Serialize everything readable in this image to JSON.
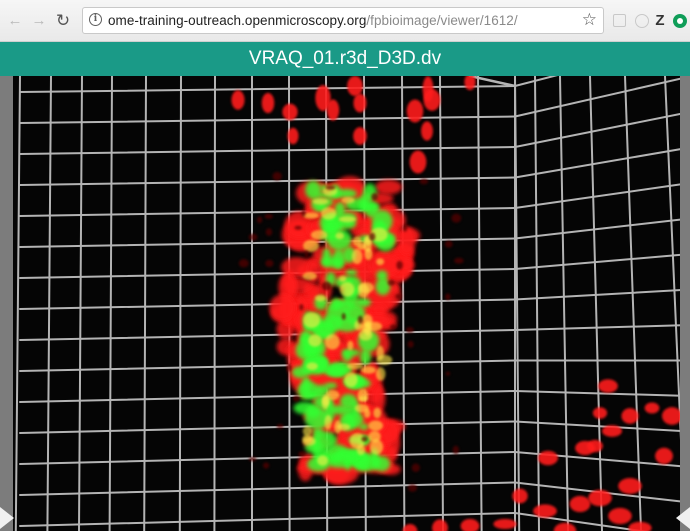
{
  "browser": {
    "url_host": "ome-training-outreach.openmicroscopy.org",
    "url_path": "/fpbioimage/viewer/1612/",
    "back_icon": "back-arrow-icon",
    "forward_icon": "forward-arrow-icon",
    "reload_icon": "reload-icon",
    "info_icon": "info-icon",
    "bookmark_icon": "star-icon",
    "extensions": [
      "puzzle-extension-icon",
      "circle-extension-icon",
      "zotero-icon",
      "green-circle-extension-icon"
    ],
    "zotero_label": "Z"
  },
  "viewer": {
    "title": "VRAQ_01.r3d_D3D.dv",
    "header_color": "#1a9a87",
    "grid_color": "#b4b4b4",
    "channel_colors": {
      "red": "#ff1a1a",
      "green": "#33ff33"
    },
    "left_control_icon": "play-right-icon",
    "right_control_icon": "play-left-icon"
  }
}
